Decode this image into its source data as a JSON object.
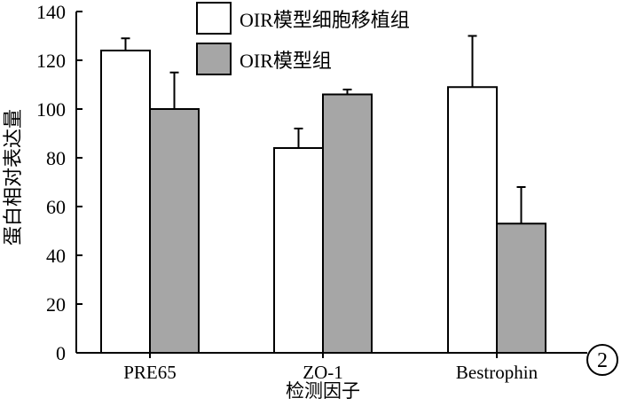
{
  "chart_data": {
    "type": "bar",
    "categories": [
      "PRE65",
      "ZO-1",
      "Bestrophin"
    ],
    "series": [
      {
        "name": "OIR模型细胞移植组",
        "values": [
          124,
          84,
          109
        ],
        "errors": [
          5,
          8,
          21
        ],
        "color": "#ffffff"
      },
      {
        "name": "OIR模型组",
        "values": [
          100,
          106,
          53
        ],
        "errors": [
          15,
          2,
          15
        ],
        "color": "#a6a6a6"
      }
    ],
    "title": "",
    "xlabel": "检测因子",
    "ylabel": "蛋白相对表达量",
    "ylim": [
      0,
      140
    ],
    "yticks": [
      0,
      20,
      40,
      60,
      80,
      100,
      120,
      140
    ],
    "grid": false,
    "legend_position": "top-center",
    "panel_label": "2",
    "edge_color": "#000000"
  }
}
